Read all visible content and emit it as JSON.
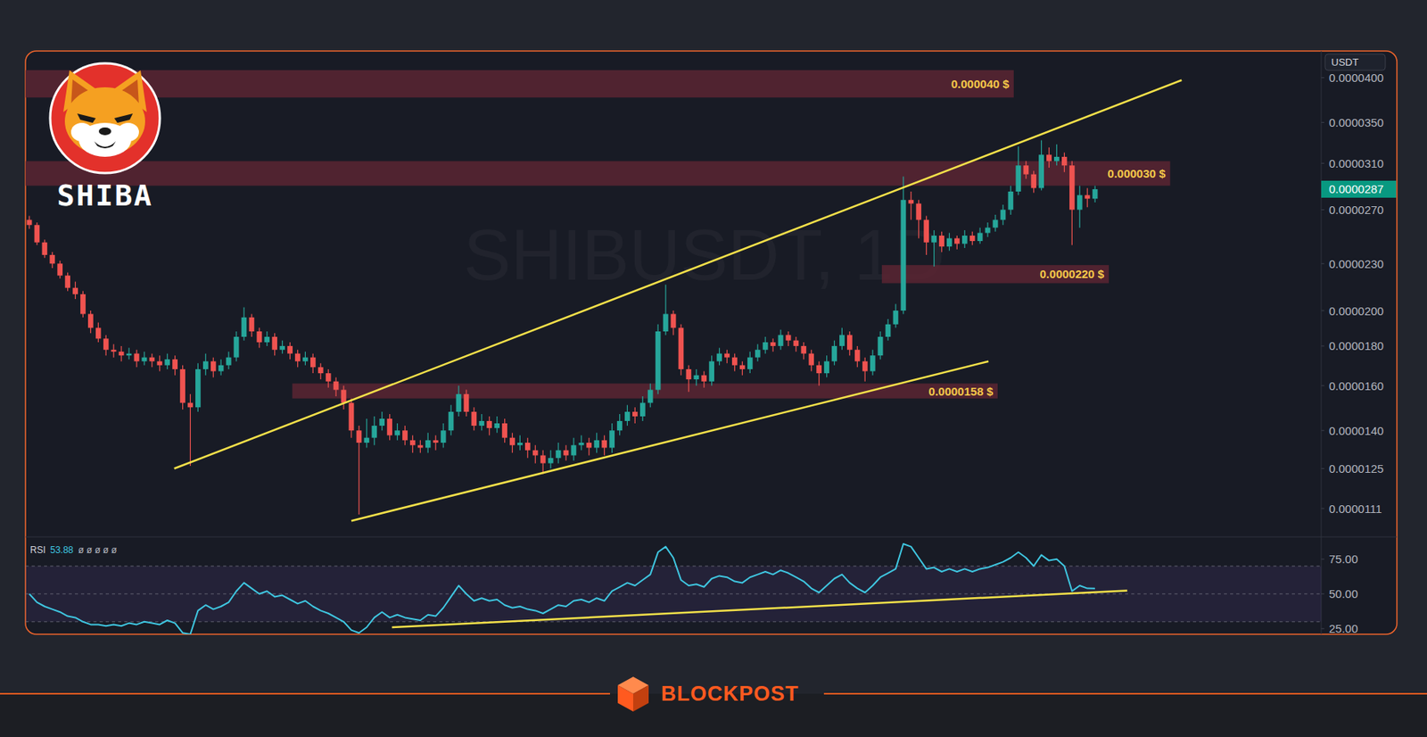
{
  "brand": {
    "logo_text": "SHIBA",
    "footer": "BLOCKPOST"
  },
  "chart_data": [
    {
      "type": "candlestick",
      "title": "SHIBUSDT, 1D",
      "ylabel": "USDT",
      "x": [
        0,
        1,
        2,
        3,
        4,
        5,
        6,
        7,
        8,
        9,
        10,
        11,
        12,
        13,
        14,
        15,
        16,
        17,
        18,
        19,
        20,
        21,
        22,
        23,
        24,
        25,
        26,
        27,
        28,
        29,
        30,
        31,
        32,
        33,
        34,
        35,
        36,
        37,
        38,
        39,
        40,
        41,
        42,
        43,
        44,
        45,
        46,
        47,
        48,
        49,
        50,
        51,
        52,
        53,
        54,
        55,
        56,
        57,
        58,
        59,
        60,
        61,
        62,
        63,
        64,
        65,
        66,
        67,
        68,
        69,
        70,
        71,
        72,
        73,
        74,
        75,
        76,
        77,
        78,
        79,
        80,
        81,
        82,
        83,
        84,
        85,
        86,
        87,
        88,
        89,
        90,
        91,
        92,
        93,
        94,
        95,
        96,
        97,
        98,
        99,
        100,
        101,
        102,
        103,
        104,
        105,
        106,
        107,
        108,
        109,
        110,
        111,
        112,
        113,
        114,
        115,
        116,
        117,
        118,
        119,
        120,
        121,
        122,
        123,
        124,
        125,
        126,
        127,
        128,
        129,
        130,
        131,
        132,
        133,
        134,
        135,
        136,
        137,
        138,
        139
      ],
      "open": [
        2.62e-05,
        2.58e-05,
        2.45e-05,
        2.36e-05,
        2.3e-05,
        2.22e-05,
        2.14e-05,
        2.1e-05,
        1.98e-05,
        1.9e-05,
        1.84e-05,
        1.78e-05,
        1.77e-05,
        1.75e-05,
        1.76e-05,
        1.72e-05,
        1.74e-05,
        1.72e-05,
        1.7e-05,
        1.73e-05,
        1.68e-05,
        1.52e-05,
        1.5e-05,
        1.68e-05,
        1.72e-05,
        1.67e-05,
        1.7e-05,
        1.74e-05,
        1.85e-05,
        1.96e-05,
        1.88e-05,
        1.82e-05,
        1.85e-05,
        1.78e-05,
        1.8e-05,
        1.76e-05,
        1.72e-05,
        1.74e-05,
        1.69e-05,
        1.66e-05,
        1.62e-05,
        1.58e-05,
        1.52e-05,
        1.4e-05,
        1.35e-05,
        1.37e-05,
        1.42e-05,
        1.45e-05,
        1.38e-05,
        1.4e-05,
        1.36e-05,
        1.34e-05,
        1.33e-05,
        1.36e-05,
        1.35e-05,
        1.4e-05,
        1.48e-05,
        1.56e-05,
        1.48e-05,
        1.42e-05,
        1.44e-05,
        1.41e-05,
        1.43e-05,
        1.37e-05,
        1.34e-05,
        1.35e-05,
        1.32e-05,
        1.3e-05,
        1.27e-05,
        1.29e-05,
        1.32e-05,
        1.3e-05,
        1.34e-05,
        1.35e-05,
        1.33e-05,
        1.36e-05,
        1.33e-05,
        1.4e-05,
        1.44e-05,
        1.48e-05,
        1.46e-05,
        1.52e-05,
        1.58e-05,
        1.88e-05,
        1.98e-05,
        1.9e-05,
        1.68e-05,
        1.63e-05,
        1.65e-05,
        1.62e-05,
        1.72e-05,
        1.76e-05,
        1.74e-05,
        1.7e-05,
        1.68e-05,
        1.74e-05,
        1.78e-05,
        1.82e-05,
        1.8e-05,
        1.86e-05,
        1.83e-05,
        1.8e-05,
        1.76e-05,
        1.7e-05,
        1.66e-05,
        1.72e-05,
        1.8e-05,
        1.86e-05,
        1.78e-05,
        1.72e-05,
        1.67e-05,
        1.75e-05,
        1.85e-05,
        1.92e-05,
        2e-05,
        2.78e-05,
        2.75e-05,
        2.62e-05,
        2.45e-05,
        2.5e-05,
        2.42e-05,
        2.48e-05,
        2.44e-05,
        2.5e-05,
        2.46e-05,
        2.52e-05,
        2.56e-05,
        2.62e-05,
        2.7e-05,
        2.85e-05,
        3.08e-05,
        3e-05,
        2.88e-05,
        3.18e-05,
        3.12e-05,
        3.16e-05,
        3.08e-05,
        2.7e-05,
        2.82e-05,
        2.79e-05
      ],
      "high": [
        2.65e-05,
        2.6e-05,
        2.47e-05,
        2.38e-05,
        2.32e-05,
        2.24e-05,
        2.18e-05,
        2.12e-05,
        2e-05,
        1.93e-05,
        1.86e-05,
        1.81e-05,
        1.8e-05,
        1.79e-05,
        1.78e-05,
        1.77e-05,
        1.76e-05,
        1.75e-05,
        1.76e-05,
        1.75e-05,
        1.7e-05,
        1.56e-05,
        1.71e-05,
        1.76e-05,
        1.74e-05,
        1.73e-05,
        1.77e-05,
        1.88e-05,
        2.02e-05,
        1.98e-05,
        1.9e-05,
        1.88e-05,
        1.87e-05,
        1.83e-05,
        1.82e-05,
        1.78e-05,
        1.77e-05,
        1.76e-05,
        1.71e-05,
        1.68e-05,
        1.64e-05,
        1.6e-05,
        1.54e-05,
        1.42e-05,
        1.45e-05,
        1.46e-05,
        1.48e-05,
        1.47e-05,
        1.43e-05,
        1.42e-05,
        1.38e-05,
        1.36e-05,
        1.39e-05,
        1.38e-05,
        1.43e-05,
        1.51e-05,
        1.6e-05,
        1.58e-05,
        1.5e-05,
        1.47e-05,
        1.46e-05,
        1.46e-05,
        1.45e-05,
        1.39e-05,
        1.38e-05,
        1.37e-05,
        1.34e-05,
        1.32e-05,
        1.32e-05,
        1.35e-05,
        1.34e-05,
        1.37e-05,
        1.38e-05,
        1.37e-05,
        1.39e-05,
        1.38e-05,
        1.43e-05,
        1.47e-05,
        1.51e-05,
        1.5e-05,
        1.55e-05,
        1.61e-05,
        1.92e-05,
        2.16e-05,
        2e-05,
        1.92e-05,
        1.7e-05,
        1.68e-05,
        1.67e-05,
        1.75e-05,
        1.79e-05,
        1.78e-05,
        1.76e-05,
        1.72e-05,
        1.77e-05,
        1.81e-05,
        1.85e-05,
        1.84e-05,
        1.89e-05,
        1.88e-05,
        1.85e-05,
        1.82e-05,
        1.78e-05,
        1.72e-05,
        1.75e-05,
        1.83e-05,
        1.9e-05,
        1.88e-05,
        1.8e-05,
        1.74e-05,
        1.78e-05,
        1.88e-05,
        1.95e-05,
        2.04e-05,
        2.98e-05,
        2.85e-05,
        2.78e-05,
        2.65e-05,
        2.54e-05,
        2.53e-05,
        2.52e-05,
        2.5e-05,
        2.54e-05,
        2.53e-05,
        2.56e-05,
        2.6e-05,
        2.66e-05,
        2.74e-05,
        2.9e-05,
        3.26e-05,
        3.12e-05,
        3.03e-05,
        3.32e-05,
        3.25e-05,
        3.28e-05,
        3.2e-05,
        3.12e-05,
        2.9e-05,
        2.88e-05,
        2.9e-05
      ],
      "low": [
        2.55e-05,
        2.43e-05,
        2.34e-05,
        2.27e-05,
        2.2e-05,
        2.12e-05,
        2.07e-05,
        1.96e-05,
        1.87e-05,
        1.82e-05,
        1.75e-05,
        1.74e-05,
        1.72e-05,
        1.73e-05,
        1.69e-05,
        1.7e-05,
        1.69e-05,
        1.67e-05,
        1.68e-05,
        1.65e-05,
        1.49e-05,
        1.26e-05,
        1.48e-05,
        1.65e-05,
        1.64e-05,
        1.65e-05,
        1.68e-05,
        1.72e-05,
        1.83e-05,
        1.85e-05,
        1.79e-05,
        1.8e-05,
        1.75e-05,
        1.76e-05,
        1.73e-05,
        1.69e-05,
        1.7e-05,
        1.66e-05,
        1.63e-05,
        1.59e-05,
        1.55e-05,
        1.49e-05,
        1.37e-05,
        1.09e-05,
        1.33e-05,
        1.34e-05,
        1.4e-05,
        1.36e-05,
        1.36e-05,
        1.34e-05,
        1.31e-05,
        1.31e-05,
        1.31e-05,
        1.32e-05,
        1.33e-05,
        1.38e-05,
        1.46e-05,
        1.46e-05,
        1.4e-05,
        1.4e-05,
        1.38e-05,
        1.39e-05,
        1.35e-05,
        1.31e-05,
        1.32e-05,
        1.29e-05,
        1.27e-05,
        1.23e-05,
        1.25e-05,
        1.27e-05,
        1.28e-05,
        1.28e-05,
        1.32e-05,
        1.3e-05,
        1.31e-05,
        1.3e-05,
        1.31e-05,
        1.38e-05,
        1.42e-05,
        1.43e-05,
        1.44e-05,
        1.5e-05,
        1.56e-05,
        1.86e-05,
        1.86e-05,
        1.65e-05,
        1.57e-05,
        1.6e-05,
        1.59e-05,
        1.6e-05,
        1.7e-05,
        1.71e-05,
        1.67e-05,
        1.65e-05,
        1.66e-05,
        1.72e-05,
        1.76e-05,
        1.77e-05,
        1.78e-05,
        1.8e-05,
        1.77e-05,
        1.73e-05,
        1.67e-05,
        1.6e-05,
        1.64e-05,
        1.7e-05,
        1.78e-05,
        1.75e-05,
        1.69e-05,
        1.62e-05,
        1.65e-05,
        1.73e-05,
        1.83e-05,
        1.9e-05,
        1.98e-05,
        2.62e-05,
        2.48e-05,
        2.36e-05,
        2.28e-05,
        2.38e-05,
        2.39e-05,
        2.4e-05,
        2.41e-05,
        2.43e-05,
        2.44e-05,
        2.49e-05,
        2.53e-05,
        2.58e-05,
        2.66e-05,
        2.82e-05,
        2.96e-05,
        2.84e-05,
        2.86e-05,
        3.06e-05,
        3.08e-05,
        3.02e-05,
        2.43e-05,
        2.56e-05,
        2.72e-05,
        2.76e-05
      ],
      "close": [
        2.58e-05,
        2.45e-05,
        2.36e-05,
        2.3e-05,
        2.22e-05,
        2.14e-05,
        2.1e-05,
        1.98e-05,
        1.9e-05,
        1.84e-05,
        1.78e-05,
        1.77e-05,
        1.75e-05,
        1.76e-05,
        1.72e-05,
        1.74e-05,
        1.72e-05,
        1.7e-05,
        1.73e-05,
        1.68e-05,
        1.52e-05,
        1.5e-05,
        1.68e-05,
        1.72e-05,
        1.67e-05,
        1.7e-05,
        1.74e-05,
        1.85e-05,
        1.96e-05,
        1.88e-05,
        1.82e-05,
        1.85e-05,
        1.78e-05,
        1.8e-05,
        1.76e-05,
        1.72e-05,
        1.74e-05,
        1.69e-05,
        1.66e-05,
        1.62e-05,
        1.58e-05,
        1.52e-05,
        1.4e-05,
        1.35e-05,
        1.37e-05,
        1.42e-05,
        1.45e-05,
        1.38e-05,
        1.4e-05,
        1.36e-05,
        1.34e-05,
        1.33e-05,
        1.36e-05,
        1.35e-05,
        1.4e-05,
        1.48e-05,
        1.56e-05,
        1.48e-05,
        1.42e-05,
        1.44e-05,
        1.41e-05,
        1.43e-05,
        1.37e-05,
        1.34e-05,
        1.35e-05,
        1.32e-05,
        1.3e-05,
        1.27e-05,
        1.29e-05,
        1.32e-05,
        1.3e-05,
        1.34e-05,
        1.35e-05,
        1.33e-05,
        1.36e-05,
        1.33e-05,
        1.4e-05,
        1.44e-05,
        1.48e-05,
        1.46e-05,
        1.52e-05,
        1.58e-05,
        1.88e-05,
        1.98e-05,
        1.9e-05,
        1.68e-05,
        1.63e-05,
        1.65e-05,
        1.62e-05,
        1.72e-05,
        1.76e-05,
        1.74e-05,
        1.7e-05,
        1.68e-05,
        1.74e-05,
        1.78e-05,
        1.82e-05,
        1.8e-05,
        1.86e-05,
        1.83e-05,
        1.8e-05,
        1.76e-05,
        1.7e-05,
        1.66e-05,
        1.72e-05,
        1.8e-05,
        1.86e-05,
        1.78e-05,
        1.72e-05,
        1.67e-05,
        1.75e-05,
        1.85e-05,
        1.92e-05,
        2e-05,
        2.78e-05,
        2.75e-05,
        2.62e-05,
        2.45e-05,
        2.5e-05,
        2.42e-05,
        2.48e-05,
        2.44e-05,
        2.5e-05,
        2.46e-05,
        2.52e-05,
        2.56e-05,
        2.62e-05,
        2.7e-05,
        2.85e-05,
        3.08e-05,
        3e-05,
        2.88e-05,
        3.18e-05,
        3.12e-05,
        3.16e-05,
        3.08e-05,
        2.7e-05,
        2.82e-05,
        2.79e-05,
        2.87e-05
      ],
      "last_price": 2.87e-05,
      "xlim": [
        -0.5,
        168.5
      ],
      "ylim": [
        1.02e-05,
        4.33e-05
      ],
      "yticks": [
        1.11e-05,
        1.25e-05,
        {
          "value": 1.4e-05,
          "label": "0.0000140"
        },
        {
          "value": 1.6e-05,
          "label": "0.0000160"
        },
        {
          "value": 1.8e-05,
          "label": "0.0000180"
        },
        {
          "value": 2e-05,
          "label": "0.0000200"
        },
        {
          "value": 2.3e-05,
          "label": "0.0000230"
        },
        {
          "value": 2.7e-05,
          "label": "0.0000270"
        },
        {
          "value": 3.1e-05,
          "label": "0.0000310"
        },
        {
          "value": 3.5e-05,
          "label": "0.0000350"
        },
        {
          "value": 4e-05,
          "label": "0.0000400"
        }
      ],
      "log": "y",
      "grid": false,
      "tick_labels": "y",
      "zones": [
        {
          "label": "0.000040 $",
          "x": [
            -0.5,
            128.4
          ],
          "y": [
            3.77e-05,
            4.09e-05
          ]
        },
        {
          "label": "0.000030 $",
          "x": [
            -0.5,
            148.8
          ],
          "y": [
            2.9e-05,
            3.12e-05
          ]
        },
        {
          "label": "0.0000220 $",
          "x": [
            111.2,
            140.8
          ],
          "y": [
            2.17e-05,
            2.29e-05
          ]
        },
        {
          "label": "0.0000158 $",
          "x": [
            34.3,
            126.3
          ],
          "y": [
            1.54e-05,
            1.61e-05
          ]
        }
      ],
      "trendlines": [
        {
          "x": [
            18.9,
            150.3
          ],
          "y": [
            1.25e-05,
            3.97e-05
          ]
        },
        {
          "x": [
            42,
            125.1
          ],
          "y": [
            1.07e-05,
            1.72e-05
          ]
        }
      ]
    },
    {
      "type": "line",
      "x": [
        0,
        1,
        2,
        3,
        4,
        5,
        6,
        7,
        8,
        9,
        10,
        11,
        12,
        13,
        14,
        15,
        16,
        17,
        18,
        19,
        20,
        21,
        22,
        23,
        24,
        25,
        26,
        27,
        28,
        29,
        30,
        31,
        32,
        33,
        34,
        35,
        36,
        37,
        38,
        39,
        40,
        41,
        42,
        43,
        44,
        45,
        46,
        47,
        48,
        49,
        50,
        51,
        52,
        53,
        54,
        55,
        56,
        57,
        58,
        59,
        60,
        61,
        62,
        63,
        64,
        65,
        66,
        67,
        68,
        69,
        70,
        71,
        72,
        73,
        74,
        75,
        76,
        77,
        78,
        79,
        80,
        81,
        82,
        83,
        84,
        85,
        86,
        87,
        88,
        89,
        90,
        91,
        92,
        93,
        94,
        95,
        96,
        97,
        98,
        99,
        100,
        101,
        102,
        103,
        104,
        105,
        106,
        107,
        108,
        109,
        110,
        111,
        112,
        113,
        114,
        115,
        116,
        117,
        118,
        119,
        120,
        121,
        122,
        123,
        124,
        125,
        126,
        127,
        128,
        129,
        130,
        131,
        132,
        133,
        134,
        135,
        136,
        137,
        138,
        139
      ],
      "series": [
        {
          "name": "RSI",
          "color": "#3fc6e0",
          "values": [
            50,
            44,
            41,
            39,
            37,
            34,
            33,
            30,
            28,
            28,
            27,
            28,
            27,
            29,
            28,
            30,
            29,
            28,
            31,
            29,
            22,
            21,
            38,
            42,
            39,
            41,
            44,
            52,
            58,
            54,
            50,
            52,
            48,
            49,
            46,
            43,
            45,
            41,
            38,
            36,
            33,
            30,
            24,
            22,
            26,
            33,
            37,
            33,
            35,
            33,
            32,
            31,
            35,
            34,
            40,
            48,
            56,
            50,
            45,
            47,
            45,
            46,
            42,
            40,
            41,
            39,
            38,
            36,
            39,
            42,
            41,
            45,
            46,
            44,
            47,
            45,
            52,
            55,
            58,
            56,
            60,
            64,
            80,
            84,
            76,
            60,
            56,
            57,
            55,
            61,
            63,
            62,
            59,
            58,
            62,
            64,
            66,
            64,
            67,
            65,
            62,
            59,
            54,
            51,
            56,
            61,
            64,
            58,
            54,
            51,
            56,
            62,
            65,
            68,
            86,
            84,
            76,
            68,
            69,
            66,
            68,
            66,
            68,
            66,
            68,
            69,
            71,
            73,
            76,
            80,
            76,
            70,
            78,
            74,
            75,
            70,
            52,
            56,
            54,
            53.88
          ]
        }
      ],
      "legend": "top-left",
      "legend_extra": "ø ø ø ø ø",
      "xlim": [
        -0.5,
        168.5
      ],
      "ylim": [
        21,
        91
      ],
      "yticks": [
        {
          "value": 25,
          "label": "25.00"
        },
        {
          "value": 50,
          "label": "50.00"
        },
        {
          "value": 75,
          "label": "75.00"
        }
      ],
      "levels": [
        30,
        50,
        70
      ],
      "grid": false,
      "tick_labels": "y",
      "trendlines": [
        {
          "x": [
            47.3,
            143.2
          ],
          "y": [
            26,
            52.4
          ]
        }
      ]
    }
  ]
}
